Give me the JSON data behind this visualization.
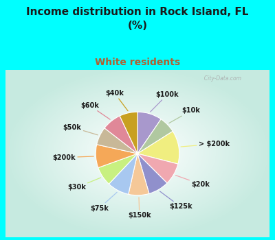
{
  "title": "Income distribution in Rock Island, FL\n(%)",
  "subtitle": "White residents",
  "bg_color": "#00FFFF",
  "labels": [
    "$100k",
    "$10k",
    "> $200k",
    "$20k",
    "$125k",
    "$150k",
    "$75k",
    "$30k",
    "$200k",
    "$50k",
    "$60k",
    "$40k"
  ],
  "sizes": [
    9.5,
    6.5,
    13.0,
    8.5,
    8.0,
    8.0,
    8.5,
    7.5,
    9.0,
    7.0,
    7.5,
    7.0
  ],
  "colors": [
    "#a898cc",
    "#b0c8a0",
    "#f0ee80",
    "#f0a8b0",
    "#9090cc",
    "#f5c898",
    "#a8c8f0",
    "#c8f080",
    "#f5a858",
    "#c8b898",
    "#e08898",
    "#c8a020"
  ],
  "title_fontsize": 11,
  "subtitle_fontsize": 10,
  "title_color": "#1a1a1a",
  "subtitle_color": "#b06030",
  "watermark": "  City-Data.com"
}
